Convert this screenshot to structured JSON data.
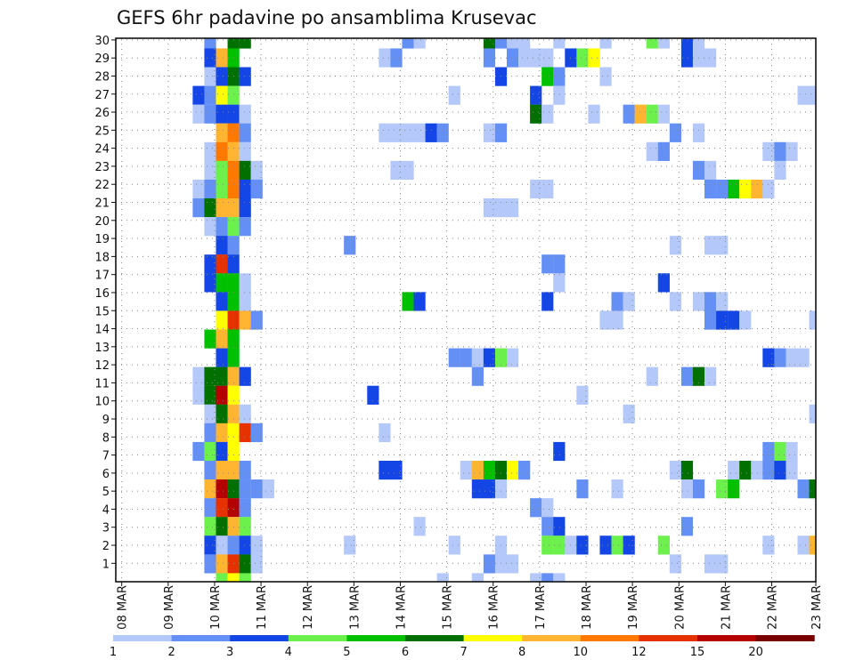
{
  "chart_data": {
    "type": "heatmap",
    "title": "GEFS 6hr padavine po ansamblima Krusevac",
    "xlabel": "",
    "ylabel": "",
    "x_tick_labels": [
      "08 MAR",
      "09 MAR",
      "10 MAR",
      "11 MAR",
      "12 MAR",
      "13 MAR",
      "14 MAR",
      "15 MAR",
      "16 MAR",
      "17 MAR",
      "18 MAR",
      "19 MAR",
      "20 MAR",
      "21 MAR",
      "22 MAR",
      "23 MAR"
    ],
    "y_tick_labels": [
      "1",
      "2",
      "3",
      "4",
      "5",
      "6",
      "7",
      "8",
      "9",
      "10",
      "11",
      "12",
      "13",
      "14",
      "15",
      "16",
      "17",
      "18",
      "19",
      "20",
      "21",
      "22",
      "23",
      "24",
      "25",
      "26",
      "27",
      "28",
      "29",
      "30"
    ],
    "time_step_hours": 6,
    "grid": true,
    "legend": "bottom colorbar",
    "colorbar": {
      "levels": [
        1,
        2,
        3,
        4,
        5,
        6,
        7,
        8,
        10,
        12,
        15,
        20
      ],
      "labels": [
        "1",
        "2",
        "3",
        "4",
        "5",
        "6",
        "7",
        "8",
        "10",
        "12",
        "15",
        "20"
      ],
      "colors": [
        "#b4c8fa",
        "#6490f5",
        "#1446e6",
        "#6cf04c",
        "#00c000",
        "#007000",
        "#ffff00",
        "#ffb432",
        "#ff7800",
        "#e63200",
        "#b40000",
        "#780000"
      ]
    },
    "cells_format": "[time_step_from_08MAR_00Z, member_row, precip_bin_lower_bound]",
    "cells": [
      [
        7,
        29,
        2
      ],
      [
        9,
        29,
        6
      ],
      [
        10,
        29,
        6
      ],
      [
        24,
        29,
        2
      ],
      [
        25,
        29,
        1
      ],
      [
        31,
        29,
        6
      ],
      [
        32,
        29,
        2
      ],
      [
        33,
        29,
        1
      ],
      [
        34,
        29,
        1
      ],
      [
        37,
        29,
        1
      ],
      [
        41,
        29,
        1
      ],
      [
        45,
        29,
        4
      ],
      [
        46,
        29,
        1
      ],
      [
        48,
        29,
        3
      ],
      [
        49,
        29,
        1
      ],
      [
        7,
        28,
        3
      ],
      [
        8,
        28,
        8
      ],
      [
        9,
        28,
        5
      ],
      [
        22,
        28,
        1
      ],
      [
        23,
        28,
        2
      ],
      [
        31,
        28,
        2
      ],
      [
        33,
        28,
        2
      ],
      [
        34,
        28,
        1
      ],
      [
        35,
        28,
        1
      ],
      [
        36,
        28,
        1
      ],
      [
        38,
        28,
        3
      ],
      [
        39,
        28,
        4
      ],
      [
        40,
        28,
        7
      ],
      [
        48,
        28,
        3
      ],
      [
        49,
        28,
        1
      ],
      [
        50,
        28,
        1
      ],
      [
        7,
        27,
        1
      ],
      [
        8,
        27,
        3
      ],
      [
        9,
        27,
        6
      ],
      [
        10,
        27,
        3
      ],
      [
        32,
        27,
        3
      ],
      [
        36,
        27,
        5
      ],
      [
        37,
        27,
        2
      ],
      [
        41,
        27,
        1
      ],
      [
        6,
        26,
        3
      ],
      [
        7,
        26,
        2
      ],
      [
        8,
        26,
        7
      ],
      [
        9,
        26,
        4
      ],
      [
        28,
        26,
        1
      ],
      [
        35,
        26,
        3
      ],
      [
        37,
        26,
        1
      ],
      [
        58,
        26,
        1
      ],
      [
        59,
        26,
        1
      ],
      [
        6,
        25,
        1
      ],
      [
        7,
        25,
        2
      ],
      [
        8,
        25,
        3
      ],
      [
        9,
        25,
        3
      ],
      [
        10,
        25,
        1
      ],
      [
        35,
        25,
        6
      ],
      [
        36,
        25,
        1
      ],
      [
        40,
        25,
        1
      ],
      [
        43,
        25,
        2
      ],
      [
        44,
        25,
        8
      ],
      [
        45,
        25,
        4
      ],
      [
        46,
        25,
        1
      ],
      [
        8,
        24,
        8
      ],
      [
        9,
        24,
        10
      ],
      [
        10,
        24,
        2
      ],
      [
        22,
        24,
        1
      ],
      [
        23,
        24,
        1
      ],
      [
        24,
        24,
        1
      ],
      [
        25,
        24,
        1
      ],
      [
        26,
        24,
        3
      ],
      [
        27,
        24,
        2
      ],
      [
        31,
        24,
        1
      ],
      [
        32,
        24,
        2
      ],
      [
        47,
        24,
        2
      ],
      [
        49,
        24,
        1
      ],
      [
        7,
        23,
        1
      ],
      [
        8,
        23,
        10
      ],
      [
        9,
        23,
        8
      ],
      [
        10,
        23,
        1
      ],
      [
        45,
        23,
        1
      ],
      [
        46,
        23,
        2
      ],
      [
        55,
        23,
        1
      ],
      [
        56,
        23,
        2
      ],
      [
        57,
        23,
        1
      ],
      [
        7,
        22,
        1
      ],
      [
        8,
        22,
        4
      ],
      [
        9,
        22,
        10
      ],
      [
        10,
        22,
        6
      ],
      [
        11,
        22,
        1
      ],
      [
        23,
        22,
        1
      ],
      [
        24,
        22,
        1
      ],
      [
        49,
        22,
        2
      ],
      [
        50,
        22,
        1
      ],
      [
        56,
        22,
        1
      ],
      [
        6,
        21,
        1
      ],
      [
        7,
        21,
        2
      ],
      [
        8,
        21,
        4
      ],
      [
        9,
        21,
        10
      ],
      [
        10,
        21,
        3
      ],
      [
        11,
        21,
        2
      ],
      [
        35,
        21,
        1
      ],
      [
        36,
        21,
        1
      ],
      [
        50,
        21,
        2
      ],
      [
        51,
        21,
        2
      ],
      [
        52,
        21,
        5
      ],
      [
        53,
        21,
        7
      ],
      [
        54,
        21,
        8
      ],
      [
        55,
        21,
        1
      ],
      [
        6,
        20,
        2
      ],
      [
        7,
        20,
        6
      ],
      [
        8,
        20,
        8
      ],
      [
        9,
        20,
        8
      ],
      [
        10,
        20,
        3
      ],
      [
        31,
        20,
        1
      ],
      [
        32,
        20,
        1
      ],
      [
        33,
        20,
        1
      ],
      [
        7,
        19,
        1
      ],
      [
        8,
        19,
        2
      ],
      [
        9,
        19,
        4
      ],
      [
        10,
        19,
        2
      ],
      [
        8,
        18,
        3
      ],
      [
        9,
        18,
        2
      ],
      [
        19,
        18,
        2
      ],
      [
        47,
        18,
        1
      ],
      [
        50,
        18,
        1
      ],
      [
        51,
        18,
        1
      ],
      [
        7,
        17,
        3
      ],
      [
        8,
        17,
        12
      ],
      [
        9,
        17,
        3
      ],
      [
        36,
        17,
        2
      ],
      [
        37,
        17,
        2
      ],
      [
        7,
        16,
        3
      ],
      [
        8,
        16,
        5
      ],
      [
        9,
        16,
        5
      ],
      [
        10,
        16,
        1
      ],
      [
        37,
        16,
        1
      ],
      [
        46,
        16,
        3
      ],
      [
        8,
        15,
        3
      ],
      [
        9,
        15,
        5
      ],
      [
        10,
        15,
        1
      ],
      [
        24,
        15,
        5
      ],
      [
        25,
        15,
        3
      ],
      [
        36,
        15,
        3
      ],
      [
        42,
        15,
        2
      ],
      [
        43,
        15,
        1
      ],
      [
        47,
        15,
        1
      ],
      [
        49,
        15,
        1
      ],
      [
        50,
        15,
        2
      ],
      [
        51,
        15,
        1
      ],
      [
        8,
        14,
        7
      ],
      [
        9,
        14,
        12
      ],
      [
        10,
        14,
        8
      ],
      [
        11,
        14,
        2
      ],
      [
        41,
        14,
        1
      ],
      [
        42,
        14,
        1
      ],
      [
        50,
        14,
        2
      ],
      [
        51,
        14,
        3
      ],
      [
        52,
        14,
        3
      ],
      [
        53,
        14,
        1
      ],
      [
        59,
        14,
        1
      ],
      [
        7,
        13,
        5
      ],
      [
        8,
        13,
        8
      ],
      [
        9,
        13,
        5
      ],
      [
        8,
        12,
        3
      ],
      [
        9,
        12,
        5
      ],
      [
        28,
        12,
        2
      ],
      [
        29,
        12,
        2
      ],
      [
        30,
        12,
        1
      ],
      [
        31,
        12,
        3
      ],
      [
        32,
        12,
        4
      ],
      [
        33,
        12,
        1
      ],
      [
        55,
        12,
        3
      ],
      [
        56,
        12,
        2
      ],
      [
        57,
        12,
        1
      ],
      [
        58,
        12,
        1
      ],
      [
        6,
        11,
        1
      ],
      [
        7,
        11,
        6
      ],
      [
        8,
        11,
        6
      ],
      [
        9,
        11,
        8
      ],
      [
        10,
        11,
        3
      ],
      [
        30,
        11,
        2
      ],
      [
        45,
        11,
        1
      ],
      [
        48,
        11,
        2
      ],
      [
        49,
        11,
        6
      ],
      [
        50,
        11,
        1
      ],
      [
        6,
        10,
        1
      ],
      [
        7,
        10,
        6
      ],
      [
        8,
        10,
        15
      ],
      [
        9,
        10,
        7
      ],
      [
        21,
        10,
        3
      ],
      [
        39,
        10,
        1
      ],
      [
        7,
        9,
        1
      ],
      [
        8,
        9,
        6
      ],
      [
        9,
        9,
        8
      ],
      [
        10,
        9,
        1
      ],
      [
        43,
        9,
        1
      ],
      [
        59,
        9,
        1
      ],
      [
        7,
        8,
        2
      ],
      [
        8,
        8,
        8
      ],
      [
        9,
        8,
        7
      ],
      [
        10,
        8,
        12
      ],
      [
        11,
        8,
        2
      ],
      [
        22,
        8,
        1
      ],
      [
        6,
        7,
        2
      ],
      [
        7,
        7,
        4
      ],
      [
        8,
        7,
        3
      ],
      [
        9,
        7,
        7
      ],
      [
        37,
        7,
        3
      ],
      [
        55,
        7,
        2
      ],
      [
        56,
        7,
        4
      ],
      [
        57,
        7,
        1
      ],
      [
        7,
        6,
        2
      ],
      [
        8,
        6,
        8
      ],
      [
        9,
        6,
        8
      ],
      [
        10,
        6,
        2
      ],
      [
        22,
        6,
        3
      ],
      [
        23,
        6,
        3
      ],
      [
        29,
        6,
        1
      ],
      [
        30,
        6,
        8
      ],
      [
        31,
        6,
        5
      ],
      [
        32,
        6,
        6
      ],
      [
        33,
        6,
        7
      ],
      [
        34,
        6,
        2
      ],
      [
        47,
        6,
        1
      ],
      [
        48,
        6,
        6
      ],
      [
        52,
        6,
        1
      ],
      [
        53,
        6,
        6
      ],
      [
        54,
        6,
        1
      ],
      [
        55,
        6,
        2
      ],
      [
        56,
        6,
        3
      ],
      [
        57,
        6,
        1
      ],
      [
        7,
        5,
        8
      ],
      [
        8,
        5,
        15
      ],
      [
        9,
        5,
        6
      ],
      [
        10,
        5,
        2
      ],
      [
        11,
        5,
        2
      ],
      [
        12,
        5,
        1
      ],
      [
        30,
        5,
        3
      ],
      [
        31,
        5,
        3
      ],
      [
        32,
        5,
        1
      ],
      [
        39,
        5,
        2
      ],
      [
        42,
        5,
        1
      ],
      [
        48,
        5,
        1
      ],
      [
        49,
        5,
        2
      ],
      [
        51,
        5,
        4
      ],
      [
        52,
        5,
        5
      ],
      [
        58,
        5,
        2
      ],
      [
        59,
        5,
        6
      ],
      [
        7,
        4,
        2
      ],
      [
        8,
        4,
        12
      ],
      [
        9,
        4,
        15
      ],
      [
        10,
        4,
        2
      ],
      [
        35,
        4,
        2
      ],
      [
        36,
        4,
        1
      ],
      [
        7,
        3,
        4
      ],
      [
        8,
        3,
        6
      ],
      [
        9,
        3,
        8
      ],
      [
        10,
        3,
        4
      ],
      [
        25,
        3,
        1
      ],
      [
        36,
        3,
        2
      ],
      [
        37,
        3,
        3
      ],
      [
        48,
        3,
        2
      ],
      [
        7,
        2,
        3
      ],
      [
        8,
        2,
        1
      ],
      [
        9,
        2,
        2
      ],
      [
        10,
        2,
        3
      ],
      [
        11,
        2,
        1
      ],
      [
        19,
        2,
        1
      ],
      [
        28,
        2,
        1
      ],
      [
        32,
        2,
        1
      ],
      [
        36,
        2,
        4
      ],
      [
        37,
        2,
        4
      ],
      [
        38,
        2,
        1
      ],
      [
        39,
        2,
        3
      ],
      [
        41,
        2,
        3
      ],
      [
        42,
        2,
        4
      ],
      [
        43,
        2,
        3
      ],
      [
        46,
        2,
        4
      ],
      [
        55,
        2,
        1
      ],
      [
        58,
        2,
        1
      ],
      [
        59,
        2,
        8
      ],
      [
        7,
        1,
        2
      ],
      [
        8,
        1,
        8
      ],
      [
        9,
        1,
        12
      ],
      [
        10,
        1,
        6
      ],
      [
        11,
        1,
        1
      ],
      [
        31,
        1,
        2
      ],
      [
        32,
        1,
        1
      ],
      [
        33,
        1,
        1
      ],
      [
        47,
        1,
        1
      ],
      [
        50,
        1,
        1
      ],
      [
        51,
        1,
        1
      ],
      [
        8,
        0,
        4
      ],
      [
        9,
        0,
        7
      ],
      [
        10,
        0,
        4
      ],
      [
        27,
        0,
        1
      ],
      [
        30,
        0,
        1
      ],
      [
        35,
        0,
        1
      ],
      [
        36,
        0,
        2
      ],
      [
        37,
        0,
        1
      ]
    ]
  }
}
